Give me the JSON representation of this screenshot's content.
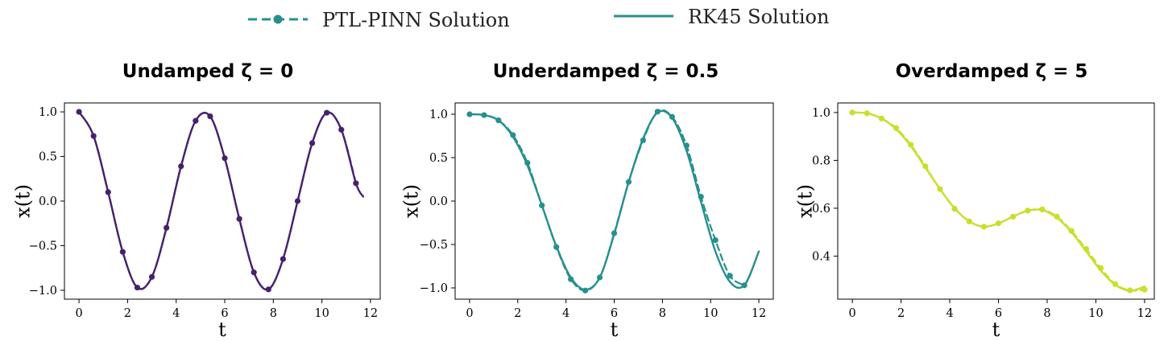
{
  "legend": {
    "items": [
      {
        "label": "PTL-PINN Solution",
        "style": "dashed-marker"
      },
      {
        "label": "RK45 Solution",
        "style": "solid"
      }
    ],
    "placement": "top-center",
    "color": "#26908e"
  },
  "chart_data": [
    {
      "type": "line",
      "title": "Undamped ζ = 0",
      "title_word": "Undamped",
      "title_math": "ζ = 0",
      "xlabel": "t",
      "ylabel": "x(t)",
      "xlim": [
        -0.6,
        12.4
      ],
      "ylim": [
        -1.1,
        1.1
      ],
      "xticks": [
        0,
        2,
        4,
        6,
        8,
        10,
        12
      ],
      "yticks": [
        -1.0,
        -0.5,
        0.0,
        0.5,
        1.0
      ],
      "ytick_labels": [
        "−1.0",
        "−0.5",
        "0.0",
        "0.5",
        "1.0"
      ],
      "grid": false,
      "color": "#46216e",
      "series": [
        {
          "name": "RK45 Solution",
          "style": "solid",
          "x": [
            0,
            0.6,
            1.2,
            1.8,
            2.4,
            3.0,
            3.6,
            4.2,
            4.8,
            5.4,
            6.0,
            6.6,
            7.2,
            7.8,
            8.4,
            9.0,
            9.6,
            10.2,
            10.8,
            11.4,
            11.7
          ],
          "y": [
            1.0,
            0.73,
            0.1,
            -0.57,
            -0.97,
            -0.85,
            -0.3,
            0.39,
            0.9,
            0.95,
            0.48,
            -0.2,
            -0.8,
            -0.99,
            -0.65,
            0.0,
            0.65,
            0.99,
            0.8,
            0.2,
            0.05
          ]
        },
        {
          "name": "PTL-PINN Solution",
          "style": "dashed-marker",
          "x": [
            0,
            0.6,
            1.2,
            1.8,
            2.4,
            3.0,
            3.6,
            4.2,
            4.8,
            5.4,
            6.0,
            6.6,
            7.2,
            7.8,
            8.4,
            9.0,
            9.6,
            10.2,
            10.8,
            11.4
          ],
          "y": [
            1.0,
            0.73,
            0.1,
            -0.57,
            -0.97,
            -0.85,
            -0.3,
            0.39,
            0.9,
            0.95,
            0.48,
            -0.2,
            -0.8,
            -0.99,
            -0.65,
            0.0,
            0.65,
            0.99,
            0.8,
            0.2
          ]
        }
      ]
    },
    {
      "type": "line",
      "title": "Underdamped ζ = 0.5",
      "title_word": "Underdamped",
      "title_math": "ζ = 0.5",
      "xlabel": "t",
      "ylabel": "x(t)",
      "xlim": [
        -0.6,
        12.6
      ],
      "ylim": [
        -1.13,
        1.13
      ],
      "xticks": [
        0,
        2,
        4,
        6,
        8,
        10,
        12
      ],
      "yticks": [
        -1.0,
        -0.5,
        0.0,
        0.5,
        1.0
      ],
      "ytick_labels": [
        "−1.0",
        "−0.5",
        "0.0",
        "0.5",
        "1.0"
      ],
      "grid": false,
      "color": "#26908e",
      "series": [
        {
          "name": "RK45 Solution",
          "style": "solid",
          "x": [
            0,
            0.6,
            1.2,
            1.8,
            2.4,
            3.0,
            3.6,
            4.2,
            4.8,
            5.4,
            6.0,
            6.6,
            7.2,
            7.8,
            8.4,
            9.0,
            9.6,
            10.2,
            10.8,
            11.4,
            12.0
          ],
          "y": [
            1.0,
            0.99,
            0.93,
            0.74,
            0.41,
            -0.05,
            -0.52,
            -0.88,
            -1.02,
            -0.88,
            -0.38,
            0.22,
            0.72,
            1.02,
            0.96,
            0.58,
            -0.01,
            -0.58,
            -0.93,
            -0.97,
            -0.58
          ]
        },
        {
          "name": "PTL-PINN Solution",
          "style": "dashed-marker",
          "x": [
            0,
            0.6,
            1.2,
            1.8,
            2.4,
            3.0,
            3.6,
            4.2,
            4.8,
            5.4,
            6.0,
            6.6,
            7.2,
            7.8,
            8.4,
            9.0,
            9.6,
            10.2,
            10.8,
            11.4
          ],
          "y": [
            1.0,
            0.99,
            0.93,
            0.76,
            0.44,
            -0.05,
            -0.53,
            -0.9,
            -1.03,
            -0.88,
            -0.37,
            0.22,
            0.7,
            1.03,
            0.97,
            0.64,
            0.05,
            -0.45,
            -0.86,
            -0.97
          ]
        }
      ]
    },
    {
      "type": "line",
      "title": "Overdamped ζ = 5",
      "title_word": "Overdamped",
      "title_math": "ζ = 5",
      "xlabel": "t",
      "ylabel": "x(t)",
      "xlim": [
        -0.6,
        12.4
      ],
      "ylim": [
        0.22,
        1.04
      ],
      "xticks": [
        0,
        2,
        4,
        6,
        8,
        10,
        12
      ],
      "yticks": [
        0.4,
        0.6,
        0.8,
        1.0
      ],
      "ytick_labels": [
        "0.4",
        "0.6",
        "0.8",
        "1.0"
      ],
      "grid": false,
      "color": "#c8df2c",
      "series": [
        {
          "name": "RK45 Solution",
          "style": "solid",
          "x": [
            0,
            0.6,
            1.2,
            1.8,
            2.4,
            3.0,
            3.6,
            4.2,
            4.8,
            5.4,
            6.0,
            6.6,
            7.2,
            7.8,
            8.4,
            9.0,
            9.6,
            10.2,
            10.8,
            11.4,
            12.0
          ],
          "y": [
            1.0,
            0.997,
            0.975,
            0.93,
            0.86,
            0.77,
            0.68,
            0.6,
            0.545,
            0.523,
            0.537,
            0.565,
            0.59,
            0.592,
            0.56,
            0.5,
            0.42,
            0.34,
            0.28,
            0.255,
            0.273
          ]
        },
        {
          "name": "PTL-PINN Solution",
          "style": "dashed-marker",
          "x": [
            0,
            0.6,
            1.2,
            1.8,
            2.4,
            3.0,
            3.6,
            4.2,
            4.8,
            5.4,
            6.0,
            6.6,
            7.2,
            7.8,
            8.4,
            9.0,
            9.6,
            10.2,
            10.8,
            11.4,
            12.0
          ],
          "y": [
            1.0,
            0.997,
            0.975,
            0.935,
            0.865,
            0.775,
            0.68,
            0.598,
            0.545,
            0.523,
            0.537,
            0.565,
            0.59,
            0.595,
            0.565,
            0.505,
            0.43,
            0.35,
            0.283,
            0.257,
            0.26
          ]
        }
      ]
    }
  ]
}
